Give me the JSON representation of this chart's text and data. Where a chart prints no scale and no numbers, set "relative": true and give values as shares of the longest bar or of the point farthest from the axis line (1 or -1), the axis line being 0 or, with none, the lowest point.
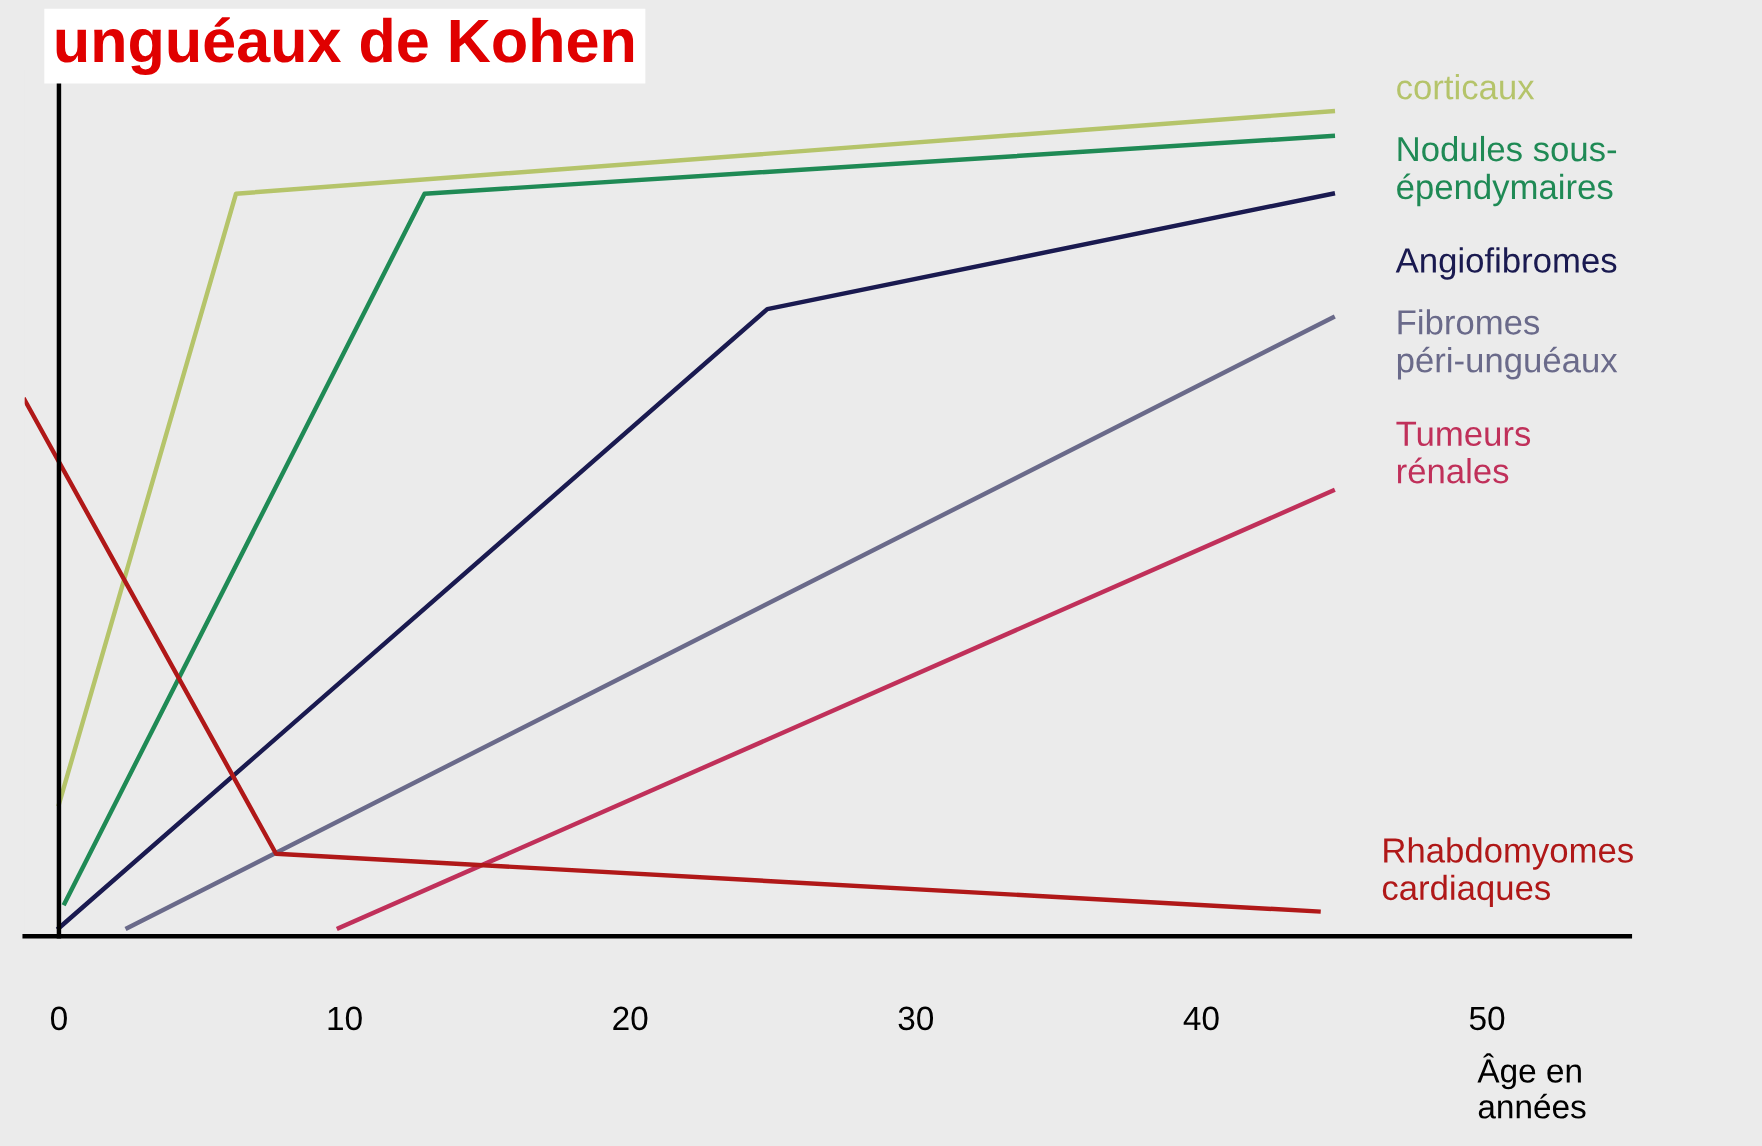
{
  "chart_data": {
    "type": "line",
    "title": "unguéaux de Kohen",
    "xlabel": "Âge en\nannées",
    "relative": true,
    "xlim": [
      -1.2,
      55
    ],
    "xticks": [
      0,
      10,
      20,
      30,
      40,
      50
    ],
    "legend": false,
    "marker": "none",
    "line_style": "solid",
    "series": [
      {
        "name": "corticaux",
        "color": "#b5c46a",
        "x": [
          0,
          6.2,
          44.6
        ],
        "values": [
          0.16,
          0.9,
          1.0
        ]
      },
      {
        "name": "Nodules sous-\népendymaires",
        "color": "#1f8a55",
        "x": [
          0.2,
          12.8,
          44.6
        ],
        "values": [
          0.04,
          0.9,
          0.97
        ]
      },
      {
        "name": "Angiofibromes",
        "color": "#1a1a50",
        "x": [
          0,
          24.8,
          44.6
        ],
        "values": [
          0.01,
          0.76,
          0.9
        ]
      },
      {
        "name": "Fibromes\npéri-unguéaux",
        "color": "#6a6a8a",
        "x": [
          2.4,
          44.6
        ],
        "values": [
          0.01,
          0.75
        ]
      },
      {
        "name": "Tumeurs\nrénales",
        "color": "#c0305a",
        "x": [
          9.8,
          44.6
        ],
        "values": [
          0.01,
          0.54
        ]
      },
      {
        "name": "Rhabdomyomes\ncardiaques",
        "color": "#b01818",
        "x": [
          -1.2,
          7.6,
          44.1
        ],
        "values": [
          0.65,
          0.1,
          0.03
        ]
      }
    ]
  }
}
